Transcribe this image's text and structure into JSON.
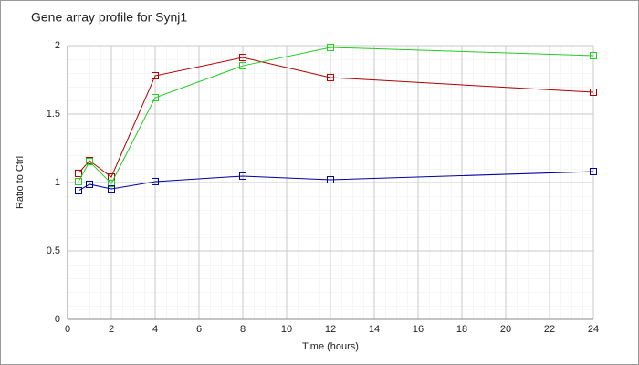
{
  "chart_data": {
    "type": "line",
    "title": "Gene array profile for Synj1",
    "x_label": "Time (hours)",
    "y_label": "Ratio to Ctrl",
    "x": [
      0.5,
      1,
      2,
      4,
      8,
      12,
      24
    ],
    "series": [
      {
        "color": "#b00000",
        "values": [
          1.067,
          1.16,
          1.04,
          1.78,
          1.913,
          1.767,
          1.66
        ]
      },
      {
        "color": "#22cc22",
        "values": [
          1.007,
          1.153,
          0.993,
          1.62,
          1.853,
          1.987,
          1.927
        ]
      },
      {
        "color": "#0000a0",
        "values": [
          0.94,
          0.987,
          0.953,
          1.007,
          1.047,
          1.02,
          1.08
        ]
      }
    ],
    "xlim": [
      0,
      24
    ],
    "xticks": [
      0,
      2,
      4,
      6,
      8,
      10,
      12,
      14,
      16,
      18,
      20,
      22,
      24
    ],
    "ylim": [
      0,
      2
    ],
    "yticks": [
      0,
      0.5,
      1,
      1.5,
      2
    ],
    "grid": true
  }
}
